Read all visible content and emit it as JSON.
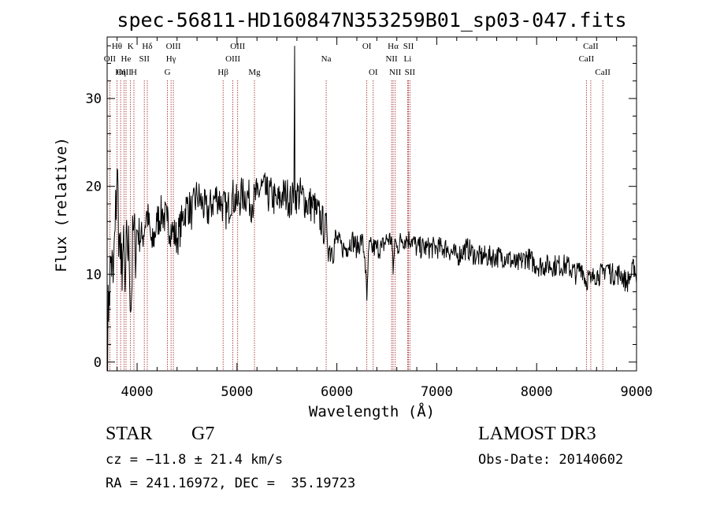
{
  "chart_data": {
    "type": "line",
    "title": "spec-56811-HD160847N353259B01_sp03-047.fits",
    "xlabel": "Wavelength (Å)",
    "ylabel": "Flux (relative)",
    "xlim": [
      3700,
      9000
    ],
    "ylim": [
      -1,
      37
    ],
    "x_ticks": [
      4000,
      5000,
      6000,
      7000,
      8000,
      9000
    ],
    "x_tick_labels": [
      "4000",
      "5000",
      "6000",
      "7000",
      "8000",
      "9000"
    ],
    "y_ticks": [
      0,
      10,
      20,
      30
    ],
    "y_tick_labels": [
      "0",
      "10",
      "20",
      "30"
    ],
    "line_color": "#000000",
    "marker_color": "#9b1b1b",
    "series": [
      {
        "name": "flux",
        "x": [
          3700,
          3720,
          3740,
          3760,
          3780,
          3800,
          3820,
          3840,
          3860,
          3880,
          3900,
          3920,
          3940,
          3960,
          3980,
          4000,
          4050,
          4100,
          4150,
          4200,
          4250,
          4300,
          4350,
          4400,
          4450,
          4500,
          4550,
          4600,
          4650,
          4700,
          4750,
          4800,
          4850,
          4900,
          4950,
          5000,
          5050,
          5100,
          5150,
          5200,
          5250,
          5300,
          5350,
          5400,
          5450,
          5500,
          5550,
          5570,
          5577,
          5580,
          5600,
          5650,
          5700,
          5750,
          5800,
          5850,
          5880,
          5900,
          5920,
          5950,
          6000,
          6050,
          6100,
          6150,
          6200,
          6250,
          6280,
          6300,
          6320,
          6350,
          6400,
          6450,
          6500,
          6550,
          6563,
          6580,
          6600,
          6650,
          6700,
          6750,
          6800,
          6900,
          7000,
          7100,
          7200,
          7300,
          7400,
          7500,
          7600,
          7700,
          7800,
          7900,
          8000,
          8100,
          8200,
          8300,
          8400,
          8450,
          8498,
          8520,
          8542,
          8580,
          8620,
          8662,
          8700,
          8750,
          8800,
          8850,
          8900,
          8950,
          8980,
          9000
        ],
        "y": [
          2,
          8,
          12,
          9,
          15,
          22,
          14,
          10,
          13,
          8,
          14,
          12,
          6,
          15,
          13,
          15,
          14,
          17,
          13,
          16,
          17,
          16,
          15,
          14,
          16,
          18,
          17,
          19,
          18,
          17,
          18,
          19,
          18,
          17,
          19,
          18,
          19,
          19,
          18,
          19,
          20,
          19,
          19,
          18,
          19,
          19,
          18,
          20,
          36,
          19,
          19,
          19,
          18,
          18,
          17,
          16,
          15,
          15,
          13,
          13,
          14,
          13,
          13,
          14,
          13,
          14,
          12,
          7,
          13,
          13,
          13,
          13,
          14,
          14,
          10,
          14,
          13,
          14,
          14,
          14,
          13,
          13,
          13,
          13,
          12,
          13,
          12,
          12,
          12,
          12,
          11,
          12,
          11,
          11,
          11,
          11,
          10,
          11,
          9,
          10,
          9,
          10,
          10,
          10,
          11,
          10,
          10,
          10,
          9,
          10,
          11,
          9
        ]
      }
    ],
    "markers": [
      {
        "name": "Hθ",
        "x": 3798,
        "row": 0
      },
      {
        "name": "OII",
        "x": 3727,
        "row": 1
      },
      {
        "name": "OIII",
        "x": 3869,
        "row": 2
      },
      {
        "name": "He",
        "x": 3889,
        "row": 1
      },
      {
        "name": "Hη",
        "x": 3835,
        "row": 2
      },
      {
        "name": "K",
        "x": 3934,
        "row": 0
      },
      {
        "name": "H",
        "x": 3968,
        "row": 2
      },
      {
        "name": "SII",
        "x": 4072,
        "row": 1
      },
      {
        "name": "Hδ",
        "x": 4102,
        "row": 0
      },
      {
        "name": "OIII",
        "x": 4363,
        "row": 0
      },
      {
        "name": "Hγ",
        "x": 4340,
        "row": 1
      },
      {
        "name": "G",
        "x": 4304,
        "row": 2
      },
      {
        "name": "Hβ",
        "x": 4861,
        "row": 2
      },
      {
        "name": "OIII",
        "x": 5007,
        "row": 0
      },
      {
        "name": "OIII",
        "x": 4959,
        "row": 1
      },
      {
        "name": "Mg",
        "x": 5175,
        "row": 2
      },
      {
        "name": "Na",
        "x": 5893,
        "row": 1
      },
      {
        "name": "OI",
        "x": 6300,
        "row": 0
      },
      {
        "name": "OI",
        "x": 6364,
        "row": 2
      },
      {
        "name": "Hα",
        "x": 6563,
        "row": 0
      },
      {
        "name": "NII",
        "x": 6548,
        "row": 1
      },
      {
        "name": "NII",
        "x": 6584,
        "row": 2
      },
      {
        "name": "SII",
        "x": 6717,
        "row": 0
      },
      {
        "name": "Li",
        "x": 6708,
        "row": 1
      },
      {
        "name": "SII",
        "x": 6731,
        "row": 2
      },
      {
        "name": "CaII",
        "x": 8542,
        "row": 0
      },
      {
        "name": "CaII",
        "x": 8498,
        "row": 1
      },
      {
        "name": "CaII",
        "x": 8662,
        "row": 2
      }
    ]
  },
  "info": {
    "object_class": "STAR",
    "subclass": "G7",
    "survey": "LAMOST DR3",
    "redshift": "cz = −11.8 ± 21.4 km/s",
    "obs_date": "Obs-Date: 20140602",
    "coords": "RA = 241.16972, DEC =  35.19723"
  }
}
